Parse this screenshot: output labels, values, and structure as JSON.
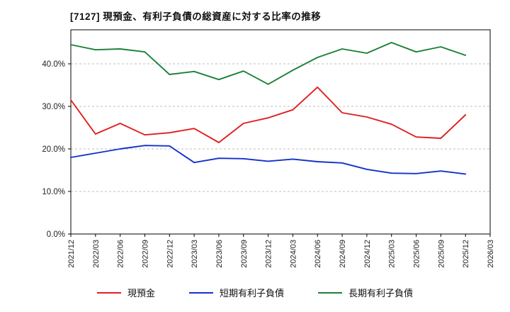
{
  "title": "[7127]  現預金、有利子負債の総資産に対する比率の推移",
  "chart_data": {
    "type": "line",
    "title": "[7127]  現預金、有利子負債の総資産に対する比率の推移",
    "categories": [
      "2021/12",
      "2022/03",
      "2022/06",
      "2022/09",
      "2022/12",
      "2023/03",
      "2023/06",
      "2023/09",
      "2023/12",
      "2024/03",
      "2024/06",
      "2024/09",
      "2024/12",
      "2025/03",
      "2025/06",
      "2025/09",
      "2025/12",
      "2026/03"
    ],
    "series": [
      {
        "name": "現預金",
        "color": "#e01f1f",
        "values": [
          31.5,
          23.5,
          26.0,
          23.3,
          23.8,
          24.8,
          21.5,
          26.0,
          27.3,
          29.2,
          34.5,
          28.5,
          27.5,
          25.8,
          22.8,
          22.5,
          28.0
        ]
      },
      {
        "name": "短期有利子負債",
        "color": "#1232cc",
        "values": [
          18.0,
          19.0,
          20.0,
          20.8,
          20.7,
          16.8,
          17.8,
          17.7,
          17.1,
          17.6,
          17.0,
          16.7,
          15.2,
          14.3,
          14.2,
          14.8,
          14.1
        ]
      },
      {
        "name": "長期有利子負債",
        "color": "#1d8038",
        "values": [
          44.5,
          43.3,
          43.5,
          42.8,
          37.5,
          38.2,
          36.3,
          38.3,
          35.2,
          38.5,
          41.5,
          43.5,
          42.5,
          45.0,
          42.8,
          44.0,
          42.0
        ]
      }
    ],
    "xlabel": "",
    "ylabel": "",
    "ylim": [
      0,
      48
    ],
    "yticks": [
      0,
      10,
      20,
      30,
      40
    ],
    "ytick_labels": [
      "0.0%",
      "10.0%",
      "20.0%",
      "30.0%",
      "40.0%"
    ],
    "grid": true,
    "legend_position": "bottom"
  }
}
